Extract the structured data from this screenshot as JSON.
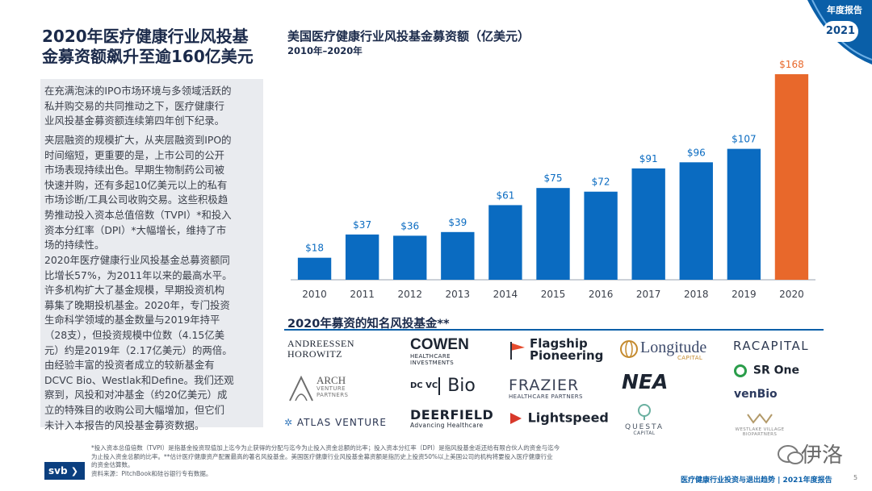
{
  "header": {
    "corner_label": "年度报告",
    "year_badge": "2021",
    "corner_color": "#0a5fa8"
  },
  "left": {
    "title_line1": "2020年医疗健康行业风投基",
    "title_line2": "金募资额飙升至逾160亿美元",
    "paragraphs": [
      [
        "在充满泡沫的IPO市场环境与多领域活跃的",
        "私并购交易的共同推动之下，医疗健康行",
        "业风投基金募资额连续第四年创下纪录。"
      ],
      [
        "夹层融资的规模扩大，从夹层融资到IPO的",
        "时间缩短，更重要的是，上市公司的公开",
        "市场表现持续出色。早期生物制药公司被",
        "快速并购，还有多起10亿美元以上的私有",
        "市场诊断/工具公司收购交易。这些积极趋",
        "势推动投入资本总值倍数（TVPI）*和投入",
        "资本分红率（DPI）*大幅增长，维持了市",
        "场的持续性。"
      ],
      [
        "2020年医疗健康行业风投基金总募资额同",
        "比增长57%，为2011年以来的最高水平。",
        "许多机构扩大了基金规模，早期投资机构",
        "募集了晚期投机基金。2020年，专门投资",
        "生命科学领域的基金数量与2019年持平",
        "（28支），但投资规模中位数（4.15亿美",
        "元）约是2019年（2.17亿美元）的两倍。",
        "由经验丰富的投资者成立的较新基金有",
        "DCVC Bio、Westlak和Define。我们还观",
        "察到，风投和对冲基金（约20亿美元）成",
        "立的特殊目的收购公司大幅增加，但它们",
        "未计入本报告的风投基金募资数据。"
      ]
    ]
  },
  "chart_data": {
    "type": "bar",
    "title": "美国医疗健康行业风投基金募资额（亿美元）",
    "subtitle": "2010年–2020年",
    "categories": [
      "2010",
      "2011",
      "2012",
      "2013",
      "2014",
      "2015",
      "2016",
      "2017",
      "2018",
      "2019",
      "2020"
    ],
    "values": [
      18,
      37,
      36,
      39,
      61,
      75,
      72,
      91,
      96,
      107,
      168
    ],
    "labels": [
      "$18",
      "$37",
      "$36",
      "$39",
      "$61",
      "$75",
      "$72",
      "$91",
      "$96",
      "$107",
      "$168"
    ],
    "ylim": [
      0,
      170
    ],
    "grid": false,
    "colors": {
      "default": "#0a6bc1",
      "highlight": "#e8682b",
      "highlight_index": 10
    }
  },
  "funds": {
    "title": "2020年募资的知名风投基金**",
    "logos": {
      "a16z_1": "ANDREESSEN",
      "a16z_2": "HOROWITZ",
      "cowen": "COWEN",
      "cowen_sub1": "HEALTHCARE",
      "cowen_sub2": "INVESTMENTS",
      "flagship_1": "Flagship",
      "flagship_2": "Pioneering",
      "longitude": "Longitude",
      "longitude_sub": "CAPITAL",
      "racapital": "RACAPITAL",
      "arch": "ARCH",
      "arch_sub1": "VENTURE",
      "arch_sub2": "PARTNERS",
      "dcvc": "DC VC",
      "dcvc_bio": "Bio",
      "frazier": "FRAZIER",
      "frazier_sub": "HEALTHCARE PARTNERS",
      "nea": "NEA",
      "srone": "SR One",
      "venbio": "venBio",
      "atlas": "ATLAS VENTURE",
      "deerfield": "DEERFIELD",
      "deerfield_sub": "Advancing Healthcare",
      "lightspeed": "Lightspeed",
      "questa": "QUESTA",
      "questa_sub": "CAPITAL",
      "westlake_1": "WESTLAKE VILLAGE",
      "westlake_2": "BIOPARTNERS"
    }
  },
  "footer": {
    "footnote_lines": [
      "*投入资本总值倍数（TVPI）是指基金投资现值加上迄今为止获得的分配与迄今为止投入资金总额的比率；投入资本分红率（DPI）是指风投基金返还给有限合伙人的资金与迄今",
      "为止投入资金总额的比率。**估计医疗健康资产配置最高的著名风投基金。美国医疗健康行业风投基金募资额是指历史上投资50%以上美国公司的机构将要投入医疗健康行业",
      "的资金估算数。",
      "资料来源：PitchBook和硅谷银行专有数据。"
    ],
    "svb_logo": "svb",
    "report_title": "医疗健康行业投资与退出趋势 | 2021年度报告",
    "page_number": "5",
    "watermark": "伊洛"
  }
}
